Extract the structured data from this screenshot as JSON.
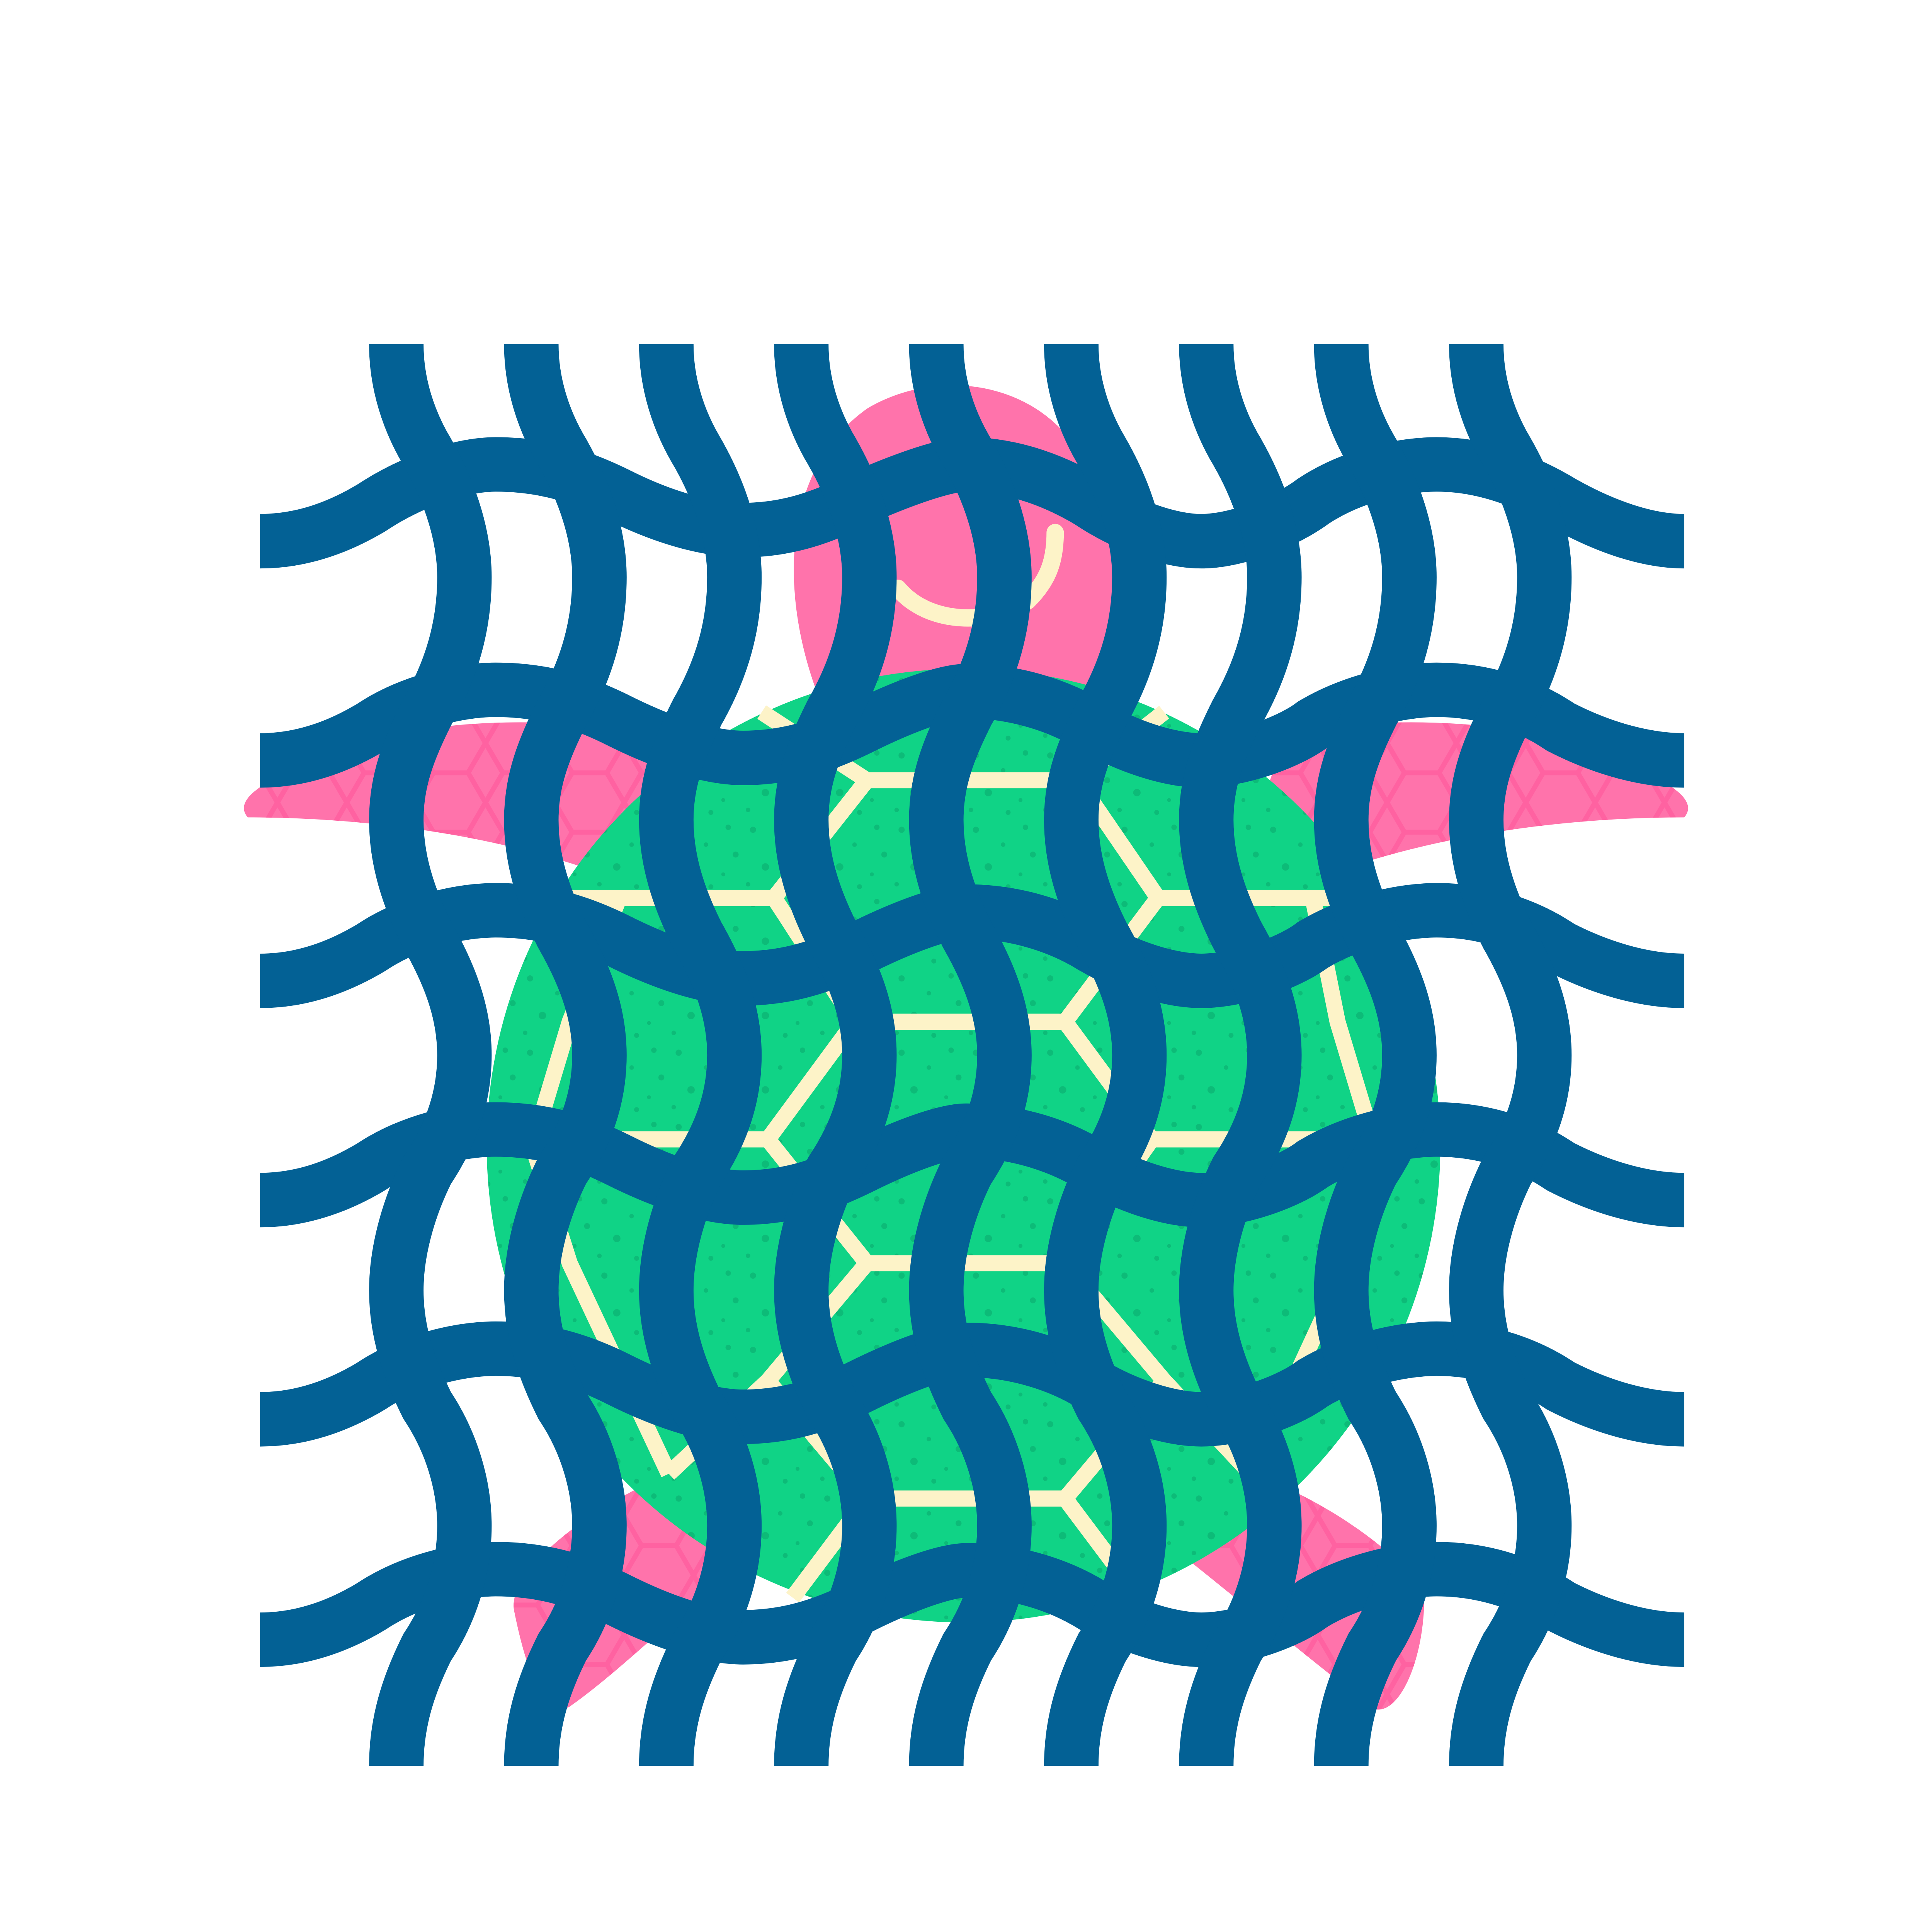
{
  "illustration": {
    "subject": "sea-turtle-in-fishing-net",
    "icons": [
      "turtle-icon",
      "fishing-net-icon"
    ],
    "colors": {
      "background": "#ffffff",
      "net": "#036195",
      "turtle_skin": "#ff73ab",
      "turtle_skin_pattern": "#ff579b",
      "shell": "#10d386",
      "shell_speckle": "#0aa86c",
      "shell_lines": "#fdf3c8"
    },
    "net": {
      "horizontal_strands": 6,
      "vertical_strands": 9
    }
  }
}
